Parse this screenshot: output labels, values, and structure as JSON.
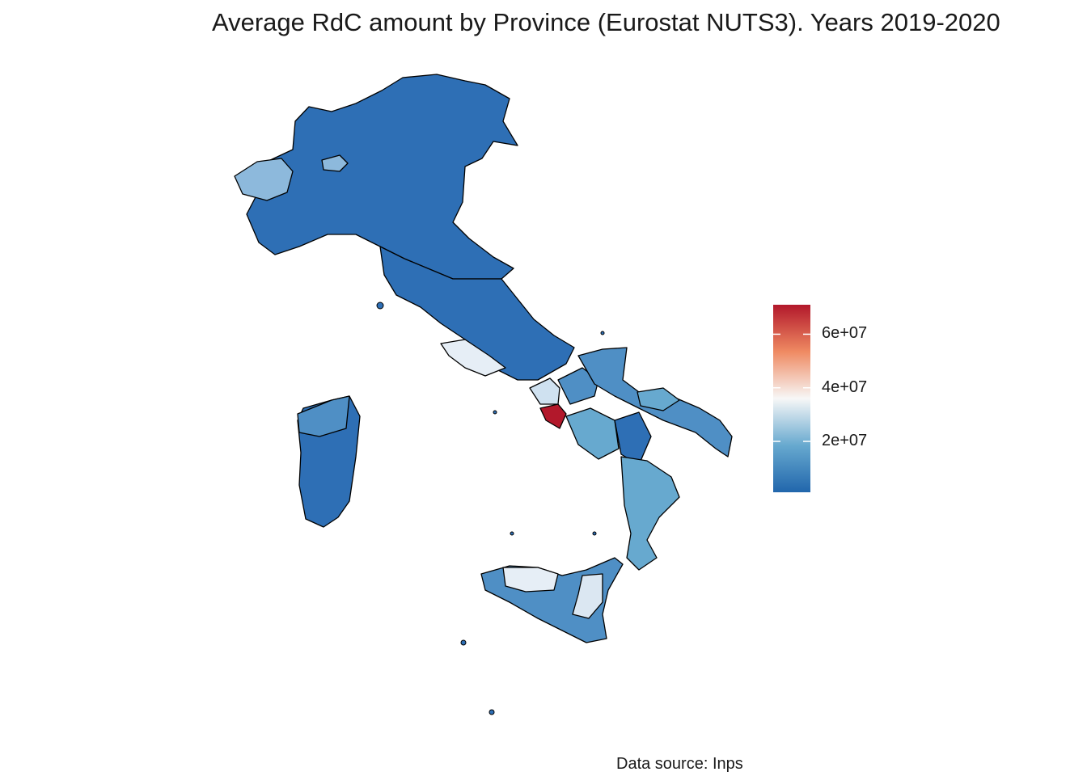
{
  "title": "Average RdC amount by Province (Eurostat NUTS3). Years 2019-2020",
  "caption": "Data source: Inps",
  "legend": {
    "ticks": [
      {
        "label": "6e+07",
        "value": 60000000
      },
      {
        "label": "4e+07",
        "value": 40000000
      },
      {
        "label": "2e+07",
        "value": 20000000
      }
    ],
    "range": [
      1000000,
      71000000
    ],
    "colors": {
      "low": "#2166ac",
      "mid_low": "#67a9cf",
      "mid": "#f7f7f7",
      "mid_high": "#ef8a62",
      "high": "#b2182b"
    }
  },
  "map": {
    "region_colors": {
      "default": "#2e6fb5",
      "light_blue": "#8db9dc",
      "pale": "#e6eef6",
      "mid_blue": "#4f8fc5",
      "napoli": "#b2182b"
    }
  }
}
